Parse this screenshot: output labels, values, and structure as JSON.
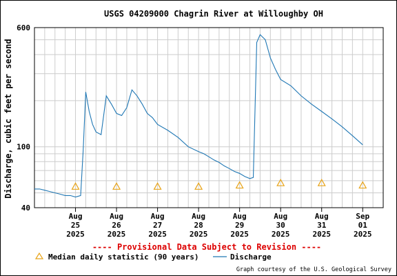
{
  "chart_data": {
    "type": "line",
    "title": "USGS 04209000 Chagrin River at Willoughby OH",
    "ylabel": "Discharge, cubic feet per second",
    "yscale": "log",
    "ylim": [
      40,
      600
    ],
    "ytick_labels": [
      {
        "value": 40,
        "label": "40"
      },
      {
        "value": 100,
        "label": "100"
      },
      {
        "value": 600,
        "label": "600"
      }
    ],
    "xlim": [
      "2025-08-24T00:00",
      "2025-09-01T12:00"
    ],
    "xticks": [
      {
        "date": "2025-08-25",
        "line1": "Aug",
        "line2": "25",
        "line3": "2025"
      },
      {
        "date": "2025-08-26",
        "line1": "Aug",
        "line2": "26",
        "line3": "2025"
      },
      {
        "date": "2025-08-27",
        "line1": "Aug",
        "line2": "27",
        "line3": "2025"
      },
      {
        "date": "2025-08-28",
        "line1": "Aug",
        "line2": "28",
        "line3": "2025"
      },
      {
        "date": "2025-08-29",
        "line1": "Aug",
        "line2": "29",
        "line3": "2025"
      },
      {
        "date": "2025-08-30",
        "line1": "Aug",
        "line2": "30",
        "line3": "2025"
      },
      {
        "date": "2025-08-31",
        "line1": "Aug",
        "line2": "31",
        "line3": "2025"
      },
      {
        "date": "2025-09-01",
        "line1": "Sep",
        "line2": "01",
        "line3": "2025"
      }
    ],
    "grid": true,
    "series": [
      {
        "name": "Discharge",
        "color": "#1f77b4",
        "x": [
          "2025-08-24T00:00",
          "2025-08-24T03:00",
          "2025-08-24T06:00",
          "2025-08-24T09:00",
          "2025-08-24T12:00",
          "2025-08-24T15:00",
          "2025-08-24T18:00",
          "2025-08-24T21:00",
          "2025-08-25T00:00",
          "2025-08-25T03:00",
          "2025-08-25T04:30",
          "2025-08-25T06:00",
          "2025-08-25T08:00",
          "2025-08-25T10:00",
          "2025-08-25T12:00",
          "2025-08-25T15:00",
          "2025-08-25T18:00",
          "2025-08-25T21:00",
          "2025-08-26T00:00",
          "2025-08-26T03:00",
          "2025-08-26T06:00",
          "2025-08-26T09:00",
          "2025-08-26T12:00",
          "2025-08-26T15:00",
          "2025-08-26T18:00",
          "2025-08-26T21:00",
          "2025-08-27T00:00",
          "2025-08-27T06:00",
          "2025-08-27T12:00",
          "2025-08-27T18:00",
          "2025-08-28T00:00",
          "2025-08-28T03:00",
          "2025-08-28T06:00",
          "2025-08-28T09:00",
          "2025-08-28T12:00",
          "2025-08-28T15:00",
          "2025-08-28T18:00",
          "2025-08-28T21:00",
          "2025-08-29T00:00",
          "2025-08-29T03:00",
          "2025-08-29T06:00",
          "2025-08-29T08:00",
          "2025-08-29T10:00",
          "2025-08-29T12:00",
          "2025-08-29T15:00",
          "2025-08-29T18:00",
          "2025-08-29T21:00",
          "2025-08-30T00:00",
          "2025-08-30T06:00",
          "2025-08-30T12:00",
          "2025-08-30T18:00",
          "2025-08-31T00:00",
          "2025-08-31T06:00",
          "2025-08-31T12:00",
          "2025-08-31T18:00",
          "2025-09-01T00:00"
        ],
        "values": [
          53,
          53,
          52,
          51,
          50,
          49,
          48,
          48,
          47,
          48,
          95,
          228,
          170,
          140,
          125,
          120,
          215,
          190,
          165,
          160,
          180,
          235,
          215,
          190,
          165,
          155,
          140,
          128,
          115,
          100,
          93,
          90,
          86,
          82,
          79,
          75,
          72,
          69,
          67,
          64,
          62,
          63,
          480,
          540,
          500,
          380,
          320,
          275,
          250,
          215,
          190,
          170,
          152,
          135,
          118,
          103
        ]
      }
    ],
    "median_markers": {
      "name": "Median daily statistic (90 years)",
      "color": "#e8a317",
      "points": [
        {
          "date": "2025-08-25",
          "value": 55
        },
        {
          "date": "2025-08-26",
          "value": 55
        },
        {
          "date": "2025-08-27",
          "value": 55
        },
        {
          "date": "2025-08-28",
          "value": 55
        },
        {
          "date": "2025-08-29",
          "value": 56
        },
        {
          "date": "2025-08-30",
          "value": 58
        },
        {
          "date": "2025-08-31",
          "value": 58
        },
        {
          "date": "2025-09-01",
          "value": 56
        }
      ]
    },
    "provisional_note": "---- Provisional Data Subject to Revision ----",
    "credit": "Graph courtesy of the U.S. Geological Survey",
    "legend_position": "bottom"
  }
}
